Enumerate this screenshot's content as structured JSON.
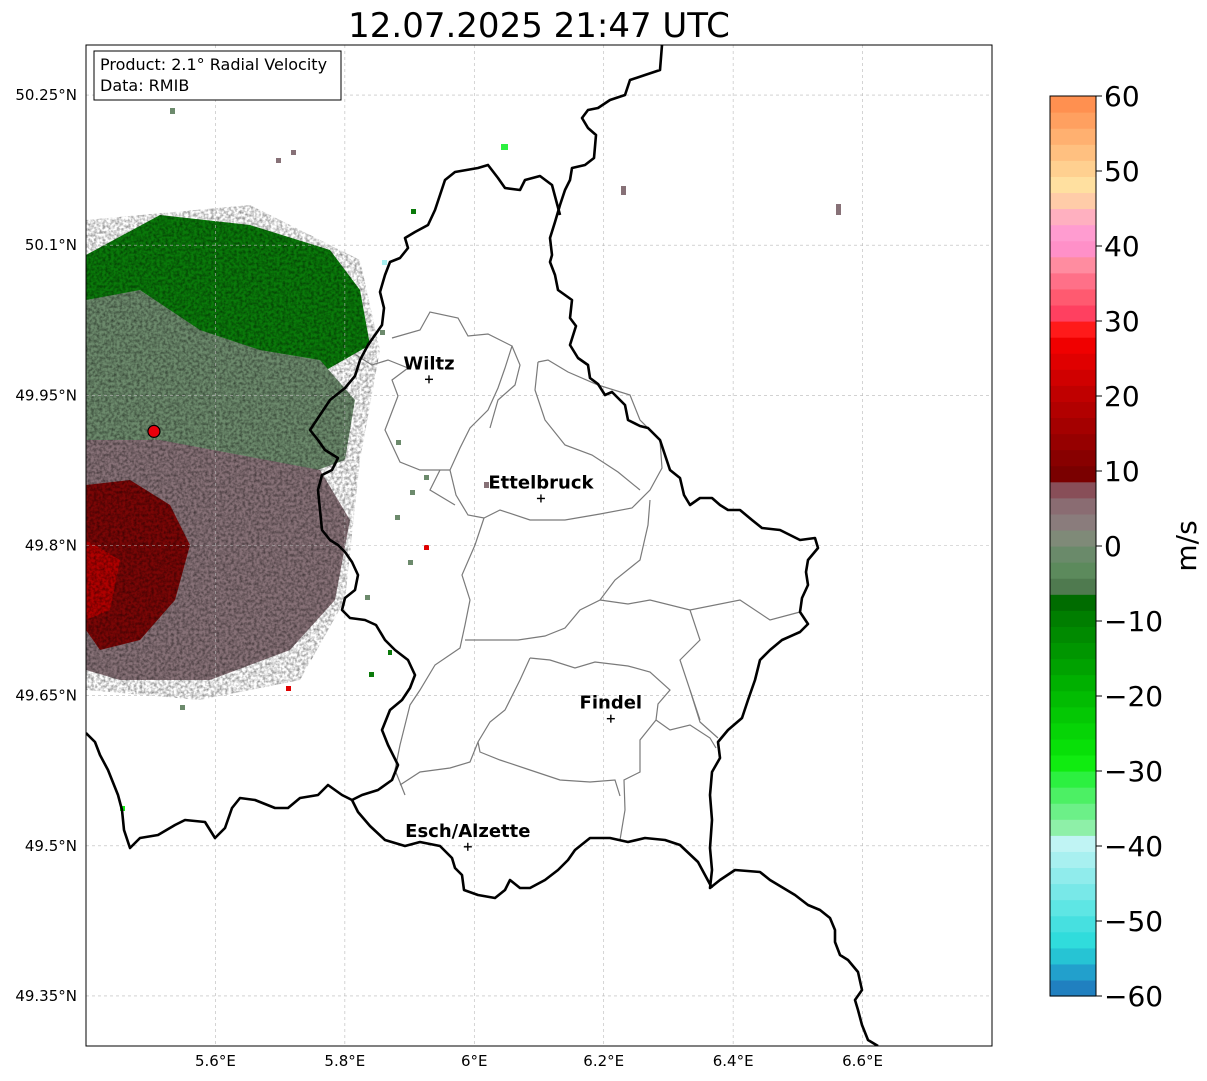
{
  "title": "12.07.2025 21:47 UTC",
  "info_box": {
    "product": "Product: 2.1° Radial Velocity",
    "data": "Data: RMIB"
  },
  "map": {
    "lon_range": [
      5.4,
      6.8
    ],
    "lat_range": [
      49.3,
      50.3
    ],
    "lat_ticks": [
      {
        "value": 50.25,
        "label": "50.25°N"
      },
      {
        "value": 50.1,
        "label": "50.1°N"
      },
      {
        "value": 49.95,
        "label": "49.95°N"
      },
      {
        "value": 49.8,
        "label": "49.8°N"
      },
      {
        "value": 49.65,
        "label": "49.65°N"
      },
      {
        "value": 49.5,
        "label": "49.5°N"
      },
      {
        "value": 49.35,
        "label": "49.35°N"
      }
    ],
    "lon_ticks": [
      {
        "value": 5.6,
        "label": "5.6°E"
      },
      {
        "value": 5.8,
        "label": "5.8°E"
      },
      {
        "value": 6.0,
        "label": "6°E"
      },
      {
        "value": 6.2,
        "label": "6.2°E"
      },
      {
        "value": 6.4,
        "label": "6.4°E"
      },
      {
        "value": 6.6,
        "label": "6.6°E"
      }
    ],
    "gridlines": true,
    "cities": [
      {
        "name": "Wiltz",
        "lon": 5.93,
        "lat": 49.966
      },
      {
        "name": "Ettelbruck",
        "lon": 6.103,
        "lat": 49.847
      },
      {
        "name": "Findel",
        "lon": 6.211,
        "lat": 49.627
      },
      {
        "name": "Esch/Alzette",
        "lon": 5.99,
        "lat": 49.499
      }
    ],
    "radar_site": {
      "lon": 5.505,
      "lat": 49.914,
      "color": "#e8000b"
    }
  },
  "colorbar": {
    "label": "m/s",
    "min": -60,
    "max": 60,
    "ticks": [
      {
        "value": 60,
        "label": "60"
      },
      {
        "value": 50,
        "label": "50"
      },
      {
        "value": 40,
        "label": "40"
      },
      {
        "value": 30,
        "label": "30"
      },
      {
        "value": 20,
        "label": "20"
      },
      {
        "value": 10,
        "label": "10"
      },
      {
        "value": 0,
        "label": "0"
      },
      {
        "value": -10,
        "label": "−10"
      },
      {
        "value": -20,
        "label": "−20"
      },
      {
        "value": -30,
        "label": "−30"
      },
      {
        "value": -40,
        "label": "−40"
      },
      {
        "value": -50,
        "label": "−50"
      },
      {
        "value": -60,
        "label": "−60"
      }
    ],
    "colors": [
      "#2080c0",
      "#22a0cc",
      "#26c4d4",
      "#30dcdc",
      "#46e0e0",
      "#5ee6e4",
      "#78e8e8",
      "#90ecec",
      "#a8f0f0",
      "#c0f4f4",
      "#8ef0a8",
      "#6cf088",
      "#4cf064",
      "#2cf040",
      "#10ec10",
      "#08e008",
      "#06d406",
      "#04c804",
      "#02bc02",
      "#00b000",
      "#00a200",
      "#009600",
      "#008a00",
      "#007e00",
      "#006c00",
      "#4f7a4f",
      "#5c8a5c",
      "#6a8a6a",
      "#7f8a78",
      "#8a7c7c",
      "#8a6c72",
      "#884e58",
      "#7a0000",
      "#880000",
      "#960000",
      "#a40000",
      "#b20000",
      "#c00000",
      "#d00000",
      "#e00000",
      "#f00000",
      "#ff1a1a",
      "#ff4060",
      "#ff5a70",
      "#ff7088",
      "#ff8ca0",
      "#ff90c8",
      "#ff9cd0",
      "#ffb0c0",
      "#ffcca8",
      "#ffe0a0",
      "#ffd090",
      "#ffc080",
      "#ffb070",
      "#ffa060",
      "#ff9050"
    ]
  }
}
